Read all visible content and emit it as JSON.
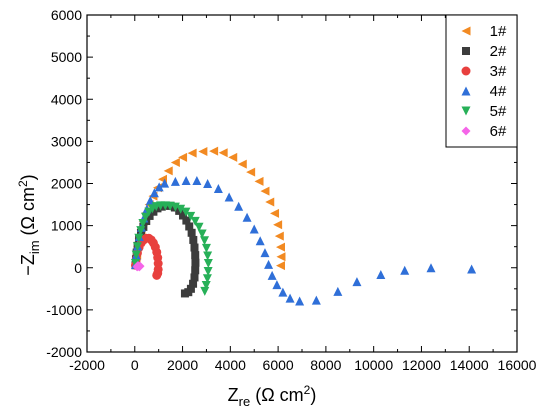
{
  "chart_data": {
    "type": "scatter",
    "title": "",
    "xlabel": {
      "main": "Z",
      "sub": "re",
      "unit": " (Ω cm",
      "sup": "2",
      "close": ")"
    },
    "ylabel": {
      "main": "−Z",
      "sub": "im",
      "unit": " (Ω cm",
      "sup": "2",
      "close": ")"
    },
    "xlim": [
      -2000,
      16000
    ],
    "ylim": [
      -2000,
      6000
    ],
    "x_ticks": [
      "-2000",
      "0",
      "2000",
      "4000",
      "6000",
      "8000",
      "10000",
      "12000",
      "14000",
      "16000"
    ],
    "y_ticks": [
      "-2000",
      "-1000",
      "0",
      "1000",
      "2000",
      "3000",
      "4000",
      "5000",
      "6000"
    ],
    "x_tick_values": [
      -2000,
      0,
      2000,
      4000,
      6000,
      8000,
      10000,
      12000,
      14000,
      16000
    ],
    "y_tick_values": [
      -2000,
      -1000,
      0,
      1000,
      2000,
      3000,
      4000,
      5000,
      6000
    ],
    "grid": false,
    "legend_position": "top-right",
    "series": [
      {
        "name": "1#",
        "marker": "triangle-left",
        "color": "#F28A22",
        "points": [
          [
            50,
            100
          ],
          [
            80,
            300
          ],
          [
            120,
            500
          ],
          [
            180,
            700
          ],
          [
            260,
            900
          ],
          [
            350,
            1100
          ],
          [
            460,
            1300
          ],
          [
            600,
            1500
          ],
          [
            760,
            1700
          ],
          [
            950,
            1900
          ],
          [
            1160,
            2100
          ],
          [
            1400,
            2300
          ],
          [
            1700,
            2500
          ],
          [
            2000,
            2620
          ],
          [
            2400,
            2720
          ],
          [
            2850,
            2760
          ],
          [
            3300,
            2770
          ],
          [
            3700,
            2730
          ],
          [
            4100,
            2620
          ],
          [
            4500,
            2460
          ],
          [
            4850,
            2270
          ],
          [
            5200,
            2050
          ],
          [
            5450,
            1820
          ],
          [
            5650,
            1560
          ],
          [
            5850,
            1290
          ],
          [
            5980,
            1020
          ],
          [
            6050,
            750
          ],
          [
            6100,
            490
          ],
          [
            6120,
            260
          ],
          [
            6100,
            50
          ]
        ]
      },
      {
        "name": "2#",
        "marker": "square",
        "color": "#3C3C3C",
        "points": [
          [
            30,
            60
          ],
          [
            50,
            200
          ],
          [
            80,
            360
          ],
          [
            120,
            520
          ],
          [
            180,
            680
          ],
          [
            260,
            830
          ],
          [
            360,
            970
          ],
          [
            480,
            1110
          ],
          [
            620,
            1230
          ],
          [
            780,
            1330
          ],
          [
            950,
            1410
          ],
          [
            1130,
            1450
          ],
          [
            1320,
            1470
          ],
          [
            1500,
            1470
          ],
          [
            1680,
            1430
          ],
          [
            1860,
            1350
          ],
          [
            2020,
            1240
          ],
          [
            2160,
            1120
          ],
          [
            2280,
            980
          ],
          [
            2380,
            830
          ],
          [
            2450,
            660
          ],
          [
            2500,
            480
          ],
          [
            2530,
            300
          ],
          [
            2540,
            120
          ],
          [
            2530,
            -60
          ],
          [
            2500,
            -230
          ],
          [
            2440,
            -380
          ],
          [
            2350,
            -500
          ],
          [
            2240,
            -580
          ],
          [
            2100,
            -610
          ]
        ]
      },
      {
        "name": "3#",
        "marker": "circle",
        "color": "#E8403E",
        "points": [
          [
            30,
            60
          ],
          [
            60,
            200
          ],
          [
            110,
            350
          ],
          [
            180,
            480
          ],
          [
            270,
            590
          ],
          [
            370,
            660
          ],
          [
            480,
            700
          ],
          [
            590,
            700
          ],
          [
            690,
            660
          ],
          [
            780,
            590
          ],
          [
            860,
            490
          ],
          [
            920,
            370
          ],
          [
            960,
            240
          ],
          [
            980,
            100
          ],
          [
            980,
            -40
          ],
          [
            960,
            -130
          ],
          [
            920,
            -180
          ]
        ]
      },
      {
        "name": "4#",
        "marker": "triangle-up",
        "color": "#2F6FD8",
        "points": [
          [
            30,
            80
          ],
          [
            60,
            300
          ],
          [
            120,
            520
          ],
          [
            190,
            740
          ],
          [
            280,
            960
          ],
          [
            380,
            1180
          ],
          [
            510,
            1400
          ],
          [
            650,
            1600
          ],
          [
            820,
            1780
          ],
          [
            1020,
            1920
          ],
          [
            1250,
            2010
          ],
          [
            1700,
            2050
          ],
          [
            2150,
            2070
          ],
          [
            2600,
            2070
          ],
          [
            3050,
            2000
          ],
          [
            3500,
            1880
          ],
          [
            3950,
            1680
          ],
          [
            4350,
            1460
          ],
          [
            4700,
            1200
          ],
          [
            5000,
            920
          ],
          [
            5250,
            640
          ],
          [
            5450,
            360
          ],
          [
            5600,
            80
          ],
          [
            5750,
            -180
          ],
          [
            5950,
            -400
          ],
          [
            6200,
            -580
          ],
          [
            6500,
            -720
          ],
          [
            6900,
            -790
          ],
          [
            7600,
            -770
          ],
          [
            8500,
            -560
          ],
          [
            9300,
            -330
          ],
          [
            10300,
            -160
          ],
          [
            11300,
            -60
          ],
          [
            12400,
            0
          ],
          [
            14100,
            -30
          ]
        ]
      },
      {
        "name": "5#",
        "marker": "triangle-down",
        "color": "#27B058",
        "points": [
          [
            30,
            100
          ],
          [
            60,
            300
          ],
          [
            110,
            500
          ],
          [
            170,
            700
          ],
          [
            250,
            880
          ],
          [
            340,
            1050
          ],
          [
            450,
            1200
          ],
          [
            590,
            1320
          ],
          [
            740,
            1400
          ],
          [
            900,
            1450
          ],
          [
            1080,
            1470
          ],
          [
            1280,
            1470
          ],
          [
            1480,
            1460
          ],
          [
            1700,
            1440
          ],
          [
            1920,
            1390
          ],
          [
            2140,
            1320
          ],
          [
            2340,
            1220
          ],
          [
            2530,
            1100
          ],
          [
            2690,
            960
          ],
          [
            2820,
            800
          ],
          [
            2920,
            640
          ],
          [
            3000,
            460
          ],
          [
            3050,
            280
          ],
          [
            3080,
            100
          ],
          [
            3070,
            -90
          ],
          [
            3040,
            -260
          ],
          [
            2990,
            -420
          ],
          [
            2930,
            -560
          ]
        ]
      },
      {
        "name": "6#",
        "marker": "diamond",
        "color": "#F565E8",
        "points": [
          [
            100,
            20
          ],
          [
            130,
            50
          ],
          [
            160,
            40
          ],
          [
            190,
            20
          ],
          [
            220,
            40
          ]
        ]
      }
    ]
  }
}
